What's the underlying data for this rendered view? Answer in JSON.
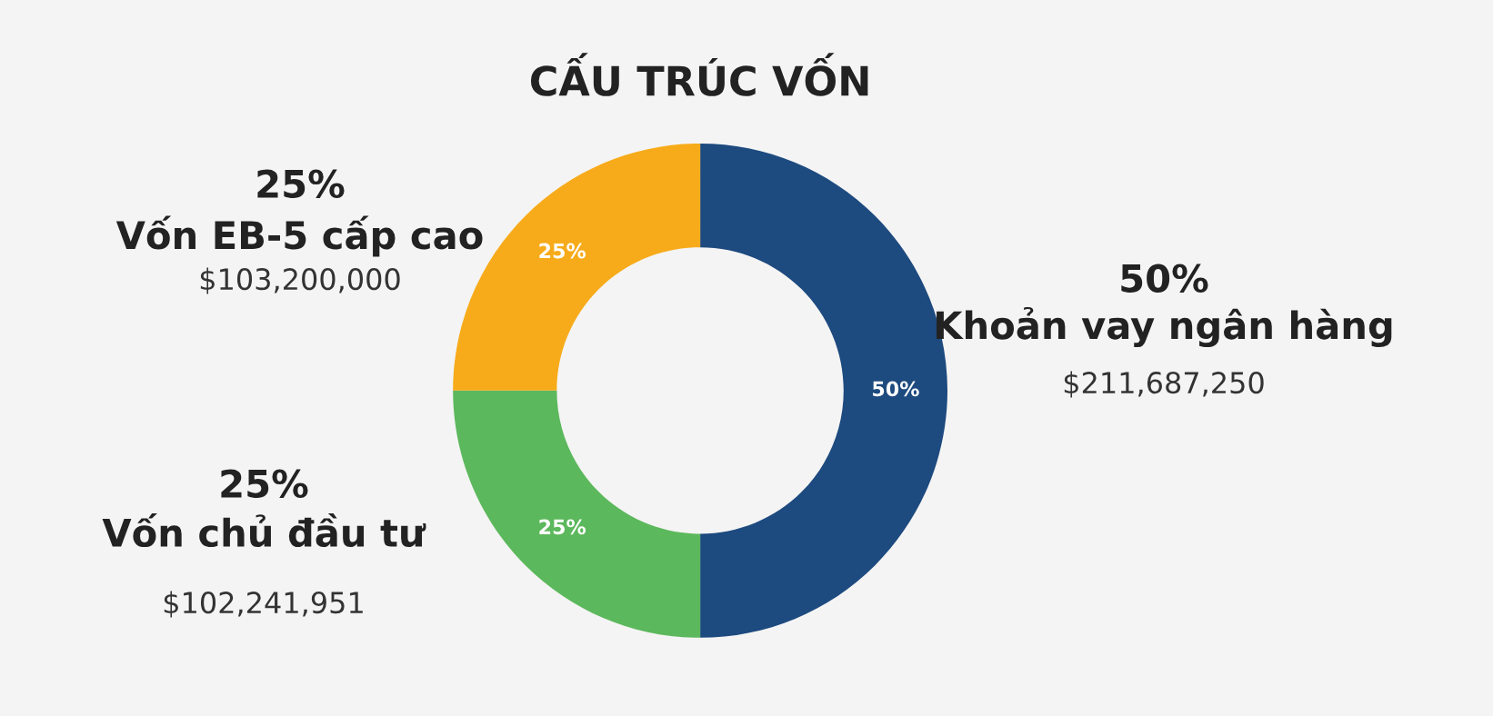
{
  "chart_data": {
    "type": "donut",
    "title": "CẤU TRÚC VỐN",
    "categories": [
      "Khoản vay ngân hàng",
      "Vốn chủ đầu tư",
      "Vốn EB-5 cấp cao"
    ],
    "values": [
      50,
      25,
      25
    ],
    "colors": [
      "#1d4a7f",
      "#5cb85c",
      "#f7ab1a"
    ],
    "value_labels": [
      "50%",
      "25%",
      "25%"
    ],
    "annotations": [
      "$211,687,250",
      "$102,241,951",
      "$103,200,000"
    ]
  }
}
